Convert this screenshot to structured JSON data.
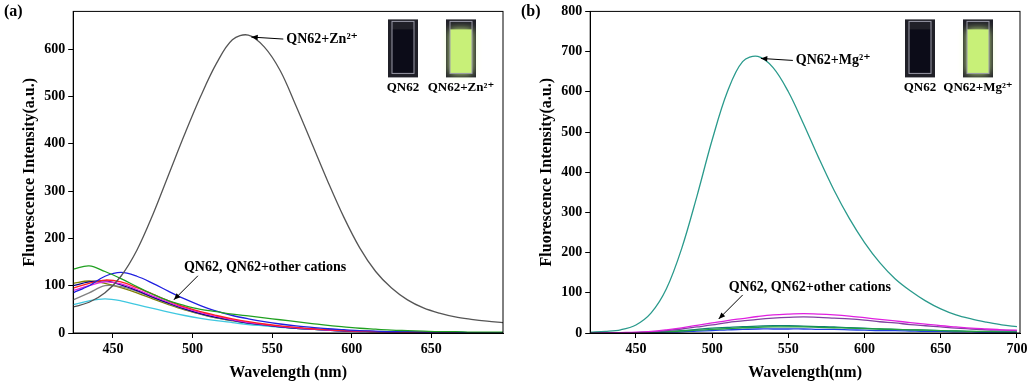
{
  "chart_data": [
    {
      "type": "line",
      "title": "(a)",
      "x_label": "Wavelength (nm)",
      "y_label": "Fluorescence Intensity(a.u.)",
      "x": [
        425,
        435,
        445,
        455,
        465,
        475,
        485,
        495,
        505,
        515,
        525,
        535,
        545,
        555,
        565,
        575,
        585,
        595,
        605,
        615,
        625,
        635,
        645,
        655,
        665,
        675,
        685,
        695
      ],
      "series": [
        {
          "color": "#555555",
          "values": [
            55,
            65,
            85,
            120,
            175,
            250,
            335,
            420,
            500,
            570,
            620,
            630,
            605,
            555,
            480,
            400,
            320,
            245,
            180,
            130,
            95,
            70,
            53,
            42,
            34,
            29,
            25,
            22
          ]
        },
        {
          "color": "#20a020",
          "values": [
            135,
            142,
            130,
            115,
            98,
            82,
            68,
            58,
            50,
            45,
            40,
            36,
            32,
            28,
            24,
            20,
            16,
            13,
            10,
            8,
            6,
            5,
            4,
            3,
            3,
            2,
            2,
            2
          ]
        },
        {
          "color": "#2020e0",
          "values": [
            85,
            100,
            120,
            128,
            120,
            105,
            88,
            72,
            58,
            46,
            37,
            30,
            24,
            19,
            15,
            12,
            9,
            7,
            5,
            4,
            3,
            3,
            2,
            2,
            2,
            1,
            1,
            1
          ]
        },
        {
          "color": "#ff2020",
          "values": [
            95,
            105,
            112,
            108,
            96,
            82,
            68,
            55,
            45,
            37,
            30,
            24,
            19,
            15,
            12,
            9,
            7,
            5,
            4,
            3,
            3,
            2,
            2,
            2,
            1,
            1,
            1,
            1
          ]
        },
        {
          "color": "#e020e0",
          "values": [
            90,
            100,
            108,
            104,
            92,
            78,
            65,
            53,
            43,
            35,
            28,
            22,
            18,
            14,
            11,
            8,
            6,
            5,
            4,
            3,
            2,
            2,
            2,
            1,
            1,
            1,
            1,
            1
          ]
        },
        {
          "color": "#000080",
          "values": [
            100,
            108,
            110,
            102,
            90,
            76,
            63,
            51,
            41,
            33,
            27,
            21,
            17,
            13,
            10,
            8,
            6,
            4,
            3,
            3,
            2,
            2,
            1,
            1,
            1,
            1,
            1,
            1
          ]
        },
        {
          "color": "#40c8e0",
          "values": [
            60,
            68,
            72,
            68,
            60,
            52,
            44,
            37,
            31,
            26,
            22,
            18,
            15,
            12,
            10,
            8,
            6,
            5,
            4,
            3,
            2,
            2,
            2,
            1,
            1,
            1,
            1,
            1
          ]
        },
        {
          "color": "#808080",
          "values": [
            70,
            85,
            100,
            98,
            88,
            75,
            62,
            50,
            40,
            32,
            26,
            21,
            17,
            13,
            10,
            8,
            6,
            5,
            4,
            3,
            3,
            2,
            2,
            2,
            1,
            1,
            1,
            1
          ]
        },
        {
          "color": "#808000",
          "values": [
            105,
            110,
            105,
            96,
            85,
            72,
            60,
            49,
            40,
            32,
            26,
            21,
            17,
            13,
            10,
            8,
            6,
            5,
            4,
            3,
            2,
            2,
            2,
            1,
            1,
            1,
            1,
            1
          ]
        }
      ],
      "xlim": [
        425,
        695
      ],
      "xticks": [
        450,
        500,
        550,
        600,
        650
      ],
      "ylim": [
        0,
        680
      ],
      "yticks": [
        0,
        100,
        200,
        300,
        400,
        500,
        600
      ],
      "grid": false,
      "annotations": [
        {
          "text": "QN62+Zn²⁺",
          "x": 535,
          "y": 630
        },
        {
          "text": "QN62, QN62+other cations",
          "x": 487,
          "y": 66
        }
      ],
      "inset_labels": [
        "QN62",
        "QN62+Zn²⁺"
      ]
    },
    {
      "type": "line",
      "title": "(b)",
      "x_label": "Wavelength(nm)",
      "y_label": "Fluorescence Intensity(a.u.)",
      "x": [
        420,
        430,
        440,
        450,
        460,
        470,
        480,
        490,
        500,
        510,
        520,
        530,
        540,
        550,
        560,
        570,
        580,
        590,
        600,
        610,
        620,
        630,
        640,
        650,
        660,
        670,
        680,
        690,
        700
      ],
      "series": [
        {
          "color": "#2a9a8c",
          "values": [
            2,
            4,
            8,
            20,
            50,
            110,
            210,
            340,
            480,
            600,
            675,
            688,
            660,
            600,
            520,
            435,
            355,
            285,
            225,
            175,
            135,
            105,
            80,
            60,
            45,
            35,
            27,
            20,
            16
          ]
        },
        {
          "color": "#e020e0",
          "values": [
            0,
            0,
            1,
            2,
            4,
            8,
            13,
            19,
            25,
            31,
            36,
            41,
            45,
            47,
            48,
            47,
            45,
            42,
            38,
            34,
            30,
            26,
            22,
            18,
            15,
            12,
            10,
            8,
            7
          ]
        },
        {
          "color": "#8040a0",
          "values": [
            0,
            0,
            1,
            1,
            3,
            6,
            10,
            15,
            20,
            26,
            30,
            34,
            37,
            39,
            40,
            39,
            37,
            35,
            32,
            28,
            25,
            21,
            18,
            15,
            12,
            10,
            8,
            7,
            6
          ]
        },
        {
          "color": "#20a040",
          "values": [
            0,
            0,
            0,
            1,
            2,
            3,
            5,
            7,
            9,
            11,
            13,
            14,
            15,
            15,
            15,
            14,
            13,
            12,
            11,
            10,
            9,
            8,
            7,
            6,
            5,
            4,
            4,
            3,
            3
          ]
        },
        {
          "color": "#2040e0",
          "values": [
            0,
            0,
            0,
            1,
            1,
            2,
            3,
            5,
            6,
            8,
            9,
            10,
            10,
            10,
            10,
            9,
            9,
            8,
            7,
            6,
            6,
            5,
            4,
            4,
            3,
            3,
            2,
            2,
            2
          ]
        },
        {
          "color": "#108070",
          "values": [
            0,
            0,
            0,
            1,
            2,
            4,
            6,
            9,
            12,
            14,
            16,
            17,
            18,
            18,
            17,
            16,
            15,
            13,
            12,
            10,
            9,
            8,
            7,
            6,
            5,
            4,
            3,
            3,
            2
          ]
        }
      ],
      "xlim": [
        420,
        702
      ],
      "xticks": [
        450,
        500,
        550,
        600,
        650,
        700
      ],
      "ylim": [
        0,
        800
      ],
      "yticks": [
        0,
        100,
        200,
        300,
        400,
        500,
        600,
        700,
        800
      ],
      "grid": false,
      "annotations": [
        {
          "text": "QN62+Mg²⁺",
          "x": 530,
          "y": 688
        },
        {
          "text": "QN62, QN62+other cations",
          "x": 503,
          "y": 30
        }
      ],
      "inset_labels": [
        "QN62",
        "QN62+Mg²⁺"
      ]
    }
  ]
}
